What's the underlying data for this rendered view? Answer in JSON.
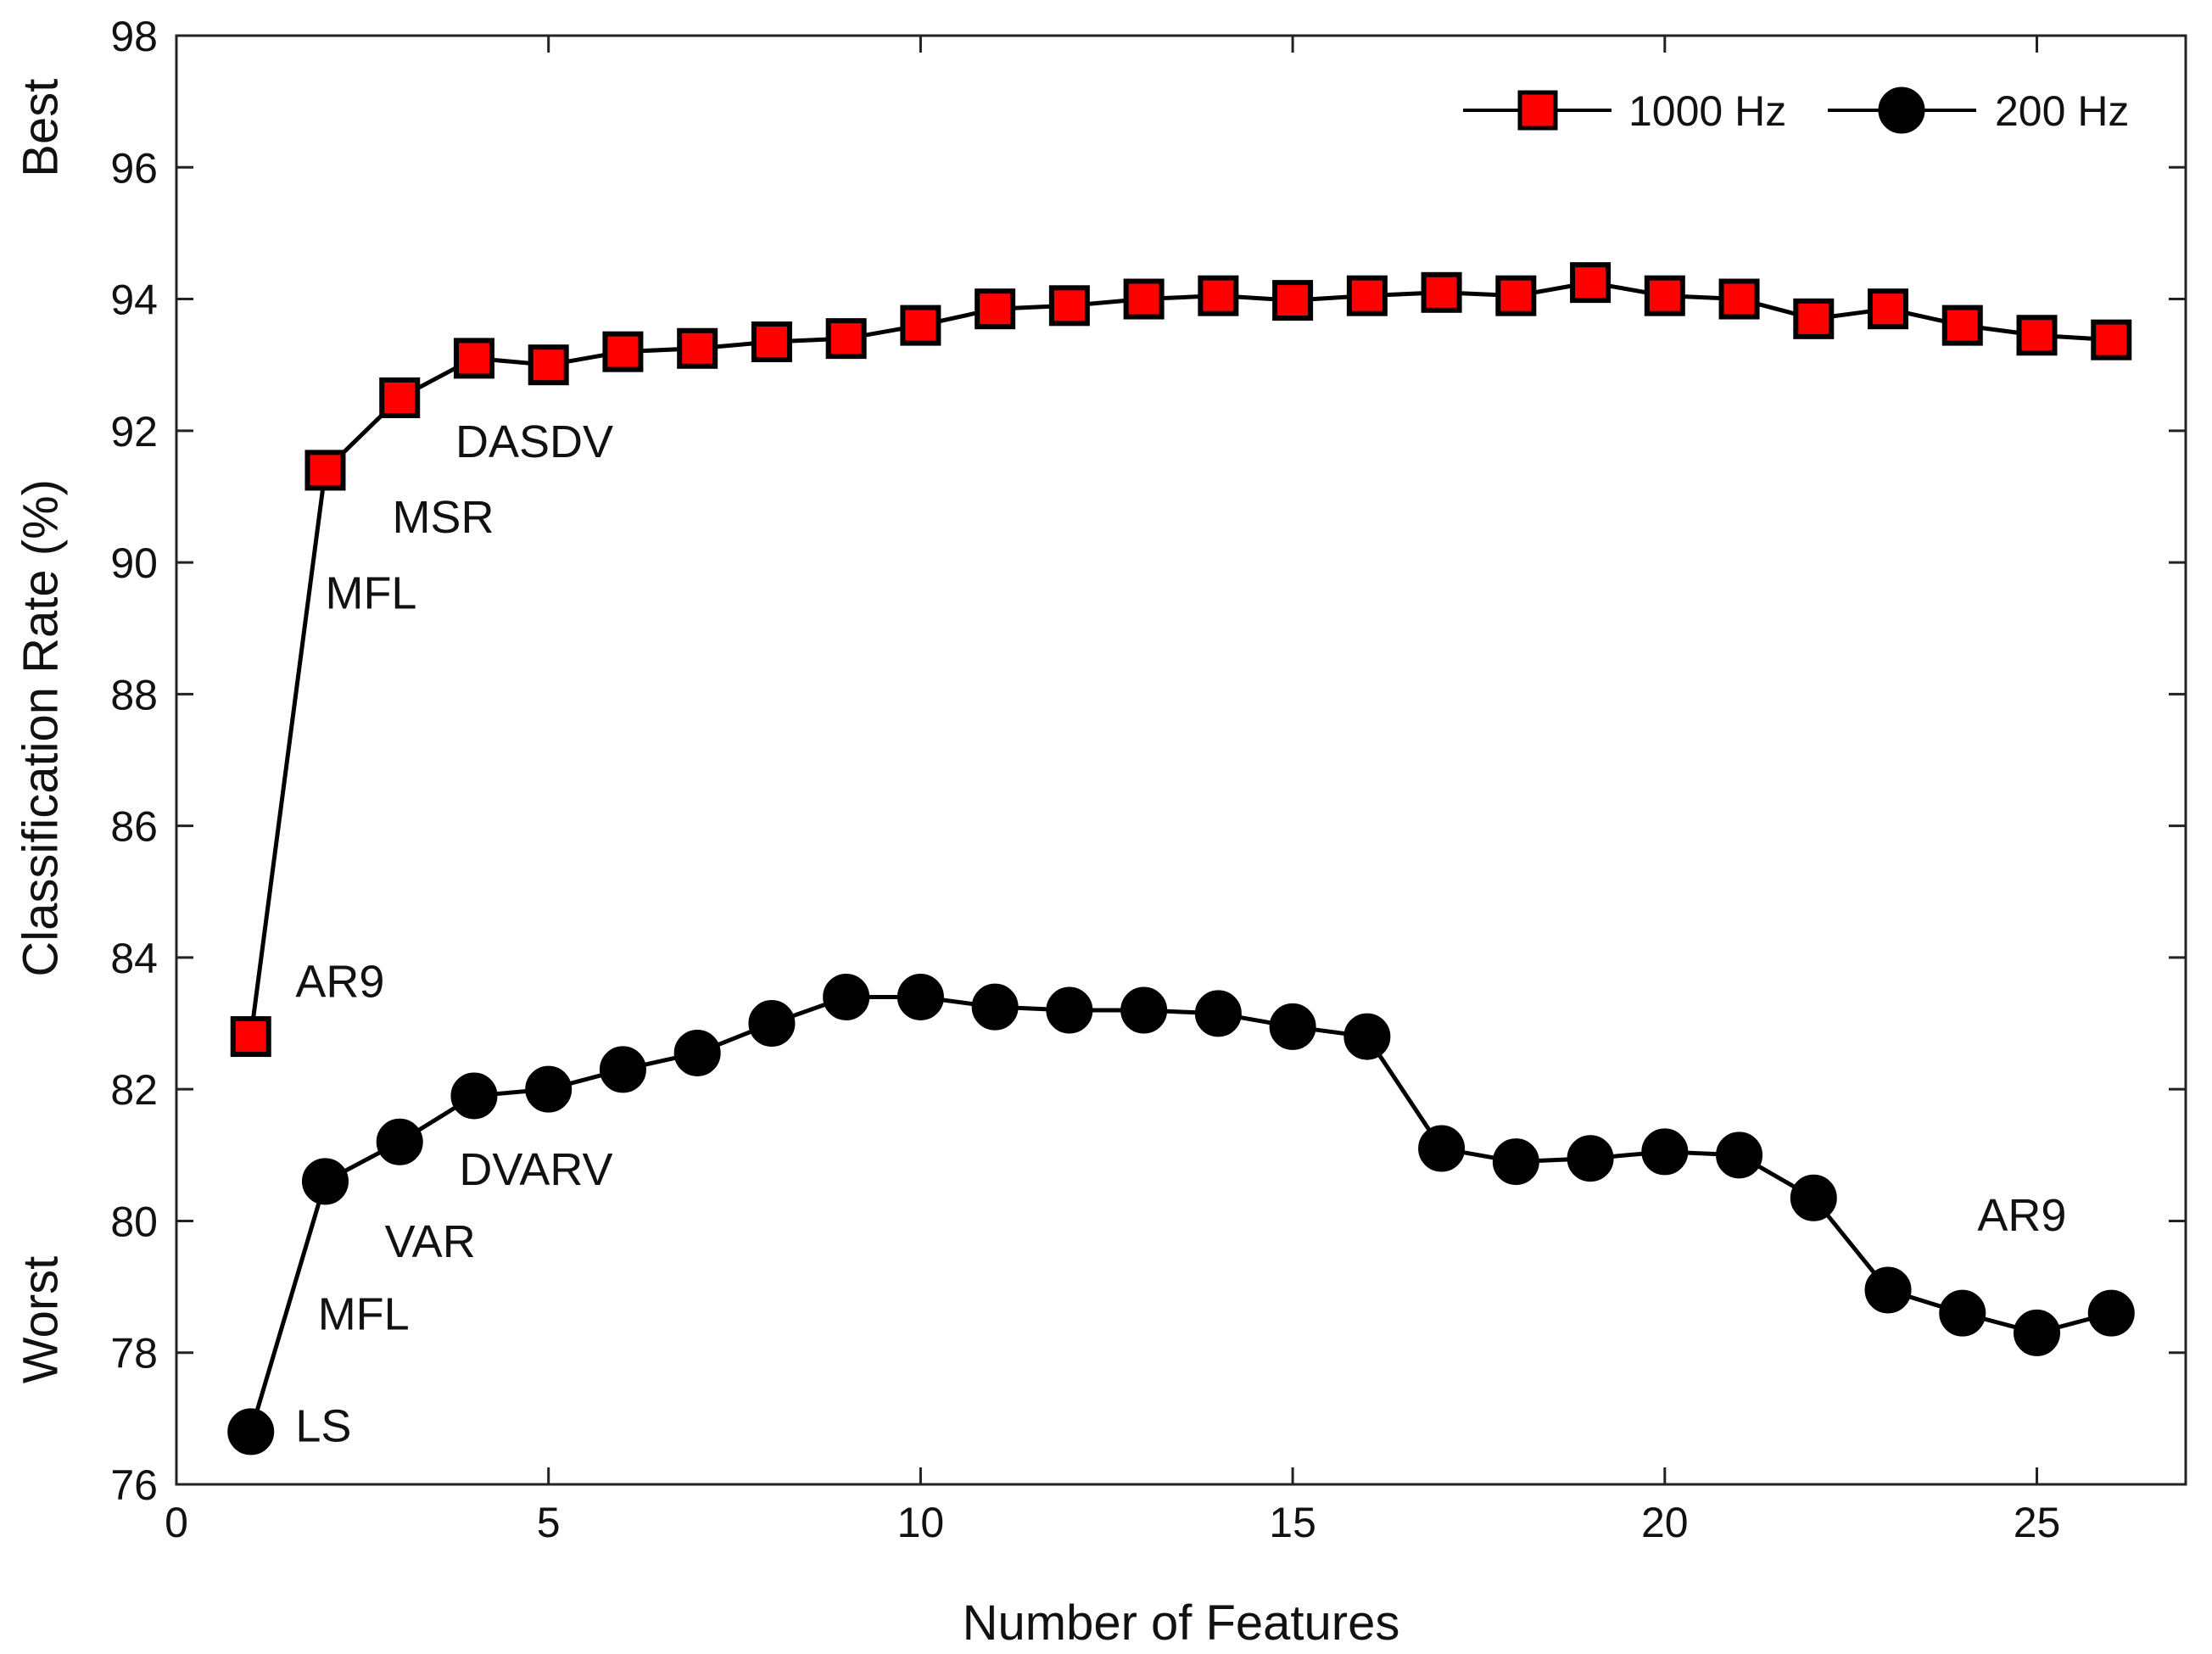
{
  "chart_data": {
    "type": "line",
    "title": "",
    "xlabel": "Number of Features",
    "ylabel": "Classification Rate (%)",
    "ylabel_best": "Best",
    "ylabel_worst": "Worst",
    "xlim": [
      0,
      27
    ],
    "ylim": [
      76,
      98
    ],
    "xticks": [
      0,
      5,
      10,
      15,
      20,
      25
    ],
    "yticks": [
      76,
      78,
      80,
      82,
      84,
      86,
      88,
      90,
      92,
      94,
      96,
      98
    ],
    "legend_position": "top-right",
    "x": [
      1,
      2,
      3,
      4,
      5,
      6,
      7,
      8,
      9,
      10,
      11,
      12,
      13,
      14,
      15,
      16,
      17,
      18,
      19,
      20,
      21,
      22,
      23,
      24,
      25,
      26
    ],
    "series": [
      {
        "name": "1000 Hz",
        "marker": "square",
        "color": "#ff0000",
        "values": [
          82.8,
          91.4,
          92.5,
          93.1,
          93.0,
          93.2,
          93.25,
          93.35,
          93.4,
          93.6,
          93.85,
          93.9,
          94.0,
          94.05,
          93.98,
          94.05,
          94.1,
          94.05,
          94.25,
          94.05,
          94.0,
          93.7,
          93.85,
          93.6,
          93.45,
          93.38
        ]
      },
      {
        "name": "200 Hz",
        "marker": "circle",
        "color": "#000000",
        "values": [
          76.8,
          80.6,
          81.2,
          81.9,
          82.0,
          82.3,
          82.55,
          83.0,
          83.4,
          83.4,
          83.25,
          83.2,
          83.2,
          83.15,
          82.95,
          82.8,
          81.1,
          80.9,
          80.95,
          81.05,
          81.0,
          80.35,
          78.95,
          78.6,
          78.3,
          78.6
        ]
      }
    ],
    "annotations": [
      {
        "text": "AR9",
        "series": "1000 Hz",
        "x": 1.6,
        "y": 83.4
      },
      {
        "text": "MFL",
        "series": "1000 Hz",
        "x": 2.0,
        "y": 89.3
      },
      {
        "text": "MSR",
        "series": "1000 Hz",
        "x": 2.9,
        "y": 90.45
      },
      {
        "text": "DASDV",
        "series": "1000 Hz",
        "x": 3.75,
        "y": 91.6
      },
      {
        "text": "LS",
        "series": "200 Hz",
        "x": 1.6,
        "y": 76.65
      },
      {
        "text": "MFL",
        "series": "200 Hz",
        "x": 1.9,
        "y": 78.35
      },
      {
        "text": "VAR",
        "series": "200 Hz",
        "x": 2.8,
        "y": 79.45
      },
      {
        "text": "DVARV",
        "series": "200 Hz",
        "x": 3.8,
        "y": 80.55
      },
      {
        "text": "AR9",
        "series": "200 Hz",
        "x": 24.2,
        "y": 79.85
      }
    ]
  }
}
